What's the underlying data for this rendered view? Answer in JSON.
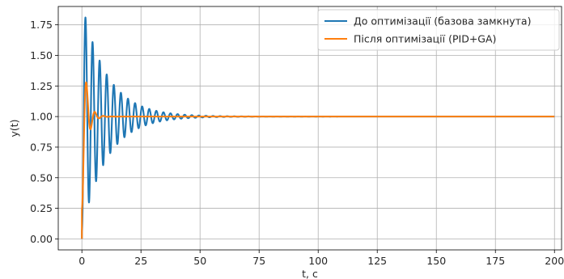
{
  "chart_data": {
    "type": "line",
    "title": "",
    "xlabel": "t, c",
    "ylabel": "y(t)",
    "xlim": [
      -10,
      203
    ],
    "ylim": [
      -0.09,
      1.9
    ],
    "xticks": [
      0,
      25,
      50,
      75,
      100,
      125,
      150,
      175,
      200
    ],
    "yticks": [
      0.0,
      0.25,
      0.5,
      0.75,
      1.0,
      1.25,
      1.5,
      1.75
    ],
    "ytick_labels": [
      "0.00",
      "0.25",
      "0.50",
      "0.75",
      "1.00",
      "1.25",
      "1.50",
      "1.75"
    ],
    "grid": true,
    "legend_position": "upper-right",
    "series": [
      {
        "name": "До оптимізації (базова замкнута)",
        "color": "#1f77b4",
        "model": {
          "kind": "underdamped_step",
          "amplitude": 0.81,
          "decay": 0.095,
          "period": 3.0,
          "ends_at": 200
        },
        "peak": 1.81,
        "final": 1.0
      },
      {
        "name": "Після оптимізації (PID+GA)",
        "color": "#ff7f0e",
        "model": {
          "kind": "underdamped_step",
          "amplitude": 0.28,
          "decay": 0.55,
          "period": 3.6,
          "ends_at": 200
        },
        "peak": 1.28,
        "final": 1.0
      }
    ]
  }
}
